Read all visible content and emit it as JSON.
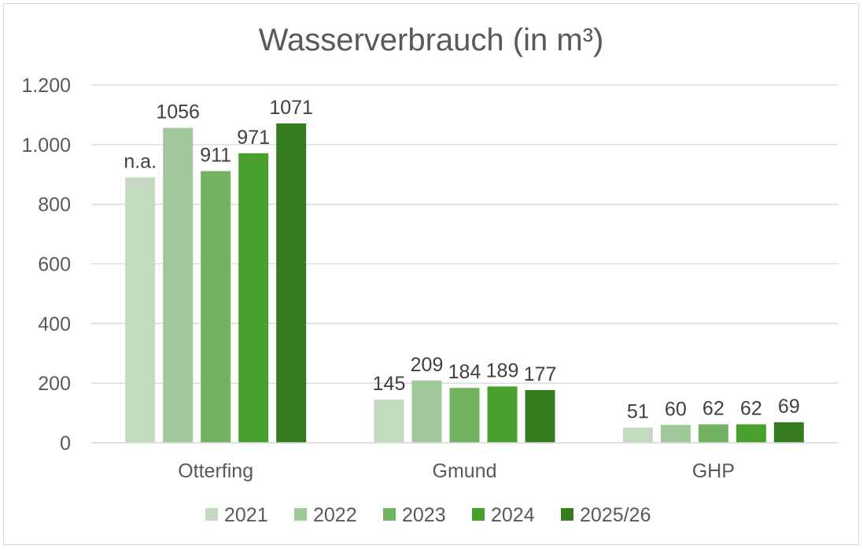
{
  "chart_data": {
    "type": "bar",
    "title": "Wasserverbrauch (in m³)",
    "categories": [
      "Otterfing",
      "Gmund",
      "GHP"
    ],
    "ylim": [
      0,
      1200
    ],
    "yticks": [
      0,
      200,
      400,
      600,
      800,
      1000,
      1200
    ],
    "ytick_labels": [
      "0",
      "200",
      "400",
      "600",
      "800",
      "1.000",
      "1.200"
    ],
    "grid": true,
    "legend_position": "bottom",
    "series": [
      {
        "name": "2021",
        "color": "#c3d9c0",
        "values": [
          890,
          145,
          51
        ],
        "labels": [
          "n.a.",
          "145",
          "51"
        ]
      },
      {
        "name": "2022",
        "color": "#a1c89a",
        "values": [
          1056,
          209,
          60
        ],
        "labels": [
          "1056",
          "209",
          "60"
        ]
      },
      {
        "name": "2023",
        "color": "#72b263",
        "values": [
          911,
          184,
          62
        ],
        "labels": [
          "911",
          "184",
          "62"
        ]
      },
      {
        "name": "2024",
        "color": "#4aa02c",
        "values": [
          971,
          189,
          62
        ],
        "labels": [
          "971",
          "189",
          "62"
        ]
      },
      {
        "name": "2025/26",
        "color": "#387c22",
        "values": [
          1071,
          177,
          69
        ],
        "labels": [
          "1071",
          "177",
          "69"
        ]
      }
    ]
  }
}
